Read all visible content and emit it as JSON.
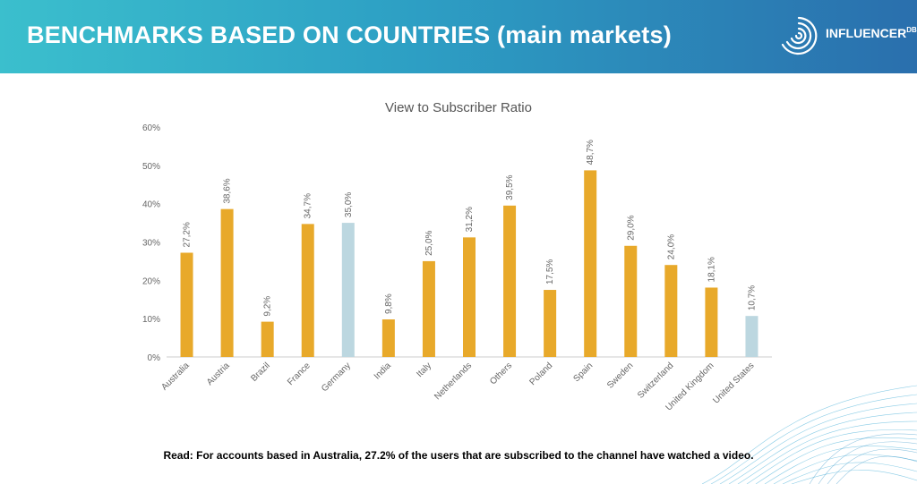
{
  "header": {
    "title": "BENCHMARKS BASED ON COUNTRIES (main markets)",
    "logo_text": "INFLUENCER",
    "logo_sup": "DB"
  },
  "chart_data": {
    "type": "bar",
    "title": "View to Subscriber Ratio",
    "categories": [
      "Australia",
      "Austria",
      "Brazil",
      "France",
      "Germany",
      "India",
      "Italy",
      "Netherlands",
      "Others",
      "Poland",
      "Spain",
      "Sweden",
      "Switzerland",
      "United Kingdom",
      "United States"
    ],
    "values": [
      27.2,
      38.6,
      9.2,
      34.7,
      35.0,
      9.8,
      25.0,
      31.2,
      39.5,
      17.5,
      48.7,
      29.0,
      24.0,
      18.1,
      10.7
    ],
    "labels": [
      "27,2%",
      "38,6%",
      "9,2%",
      "34,7%",
      "35,0%",
      "9,8%",
      "25,0%",
      "31,2%",
      "39,5%",
      "17,5%",
      "48,7%",
      "29,0%",
      "24,0%",
      "18,1%",
      "10,7%"
    ],
    "show_label": [
      true,
      true,
      true,
      true,
      true,
      true,
      true,
      true,
      true,
      true,
      true,
      true,
      true,
      true,
      true
    ],
    "highlight": [
      false,
      false,
      false,
      false,
      true,
      false,
      false,
      false,
      false,
      false,
      false,
      false,
      false,
      false,
      true
    ],
    "y_ticks": [
      0,
      10,
      20,
      30,
      40,
      50,
      60
    ],
    "y_tick_labels": [
      "0%",
      "10%",
      "20%",
      "30%",
      "40%",
      "50%",
      "60%"
    ],
    "ylim": [
      0,
      60
    ],
    "xlabel": "",
    "ylabel": "",
    "grid": false,
    "colors": {
      "default": "#e8a92a",
      "highlight": "#bcd7e0",
      "axis": "#cccccc",
      "text": "#666666"
    }
  },
  "footer": {
    "note": "Read: For accounts based in Australia, 27.2% of the users that are subscribed to the channel have watched a video."
  }
}
